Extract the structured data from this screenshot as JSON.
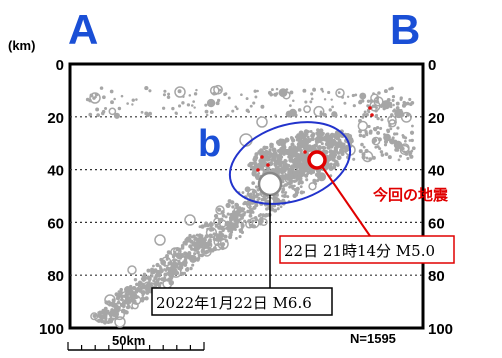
{
  "chart_data": {
    "type": "scatter",
    "title": "",
    "xlabel": "",
    "ylabel": "(km)",
    "ylim": [
      0,
      100
    ],
    "y_ticks": [
      "0",
      "20",
      "40",
      "60",
      "80",
      "100"
    ],
    "grid": "horizontal dotted",
    "section_labels": {
      "left": "A",
      "right": "B"
    },
    "region_label": "b",
    "count_label": "N=1595",
    "scale_bar_label": "50km",
    "colors": {
      "background_points": "#a6a6a6",
      "recent_points": "#e01010",
      "region_ellipse": "#2233cc",
      "section_letters": "#1a4fd6",
      "highlight_text": "#e00000"
    },
    "annotations": [
      {
        "text": "今回の地震",
        "color": "#e00000"
      },
      {
        "text": "22日 21時14分 M5.0",
        "box_color": "#e00000"
      },
      {
        "text": "2022年1月22日 M6.6",
        "box_color": "#000000"
      }
    ],
    "series": [
      {
        "points": "hypocenters (gray, sized by magnitude)"
      },
      {
        "points": "recent events (red)"
      }
    ],
    "main_events": [
      {
        "x": 250,
        "depth": 37,
        "magnitude": 5.0,
        "color": "#e00000"
      },
      {
        "x": 205,
        "depth": 45,
        "magnitude": 6.6,
        "color": "#888888"
      }
    ]
  }
}
